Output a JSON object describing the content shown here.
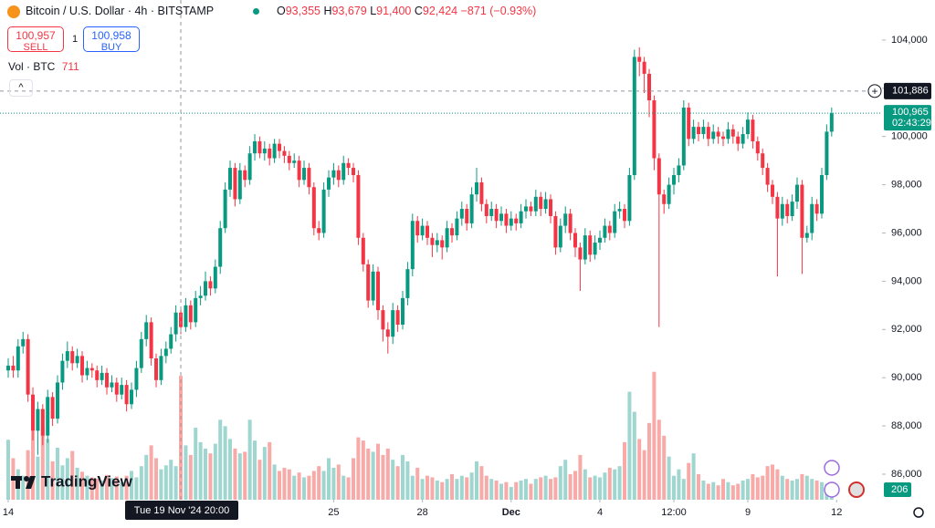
{
  "header": {
    "symbol": "Bitcoin / U.S. Dollar · 4h · BITSTAMP",
    "o_label": "O",
    "open": "93,355",
    "h_label": "H",
    "high": "93,679",
    "l_label": "L",
    "low": "91,400",
    "c_label": "C",
    "close": "92,424",
    "change": "−871 (−0.93%)"
  },
  "trade": {
    "sell_price": "100,957",
    "sell": "SELL",
    "spread": "1",
    "buy_price": "100,958",
    "buy": "BUY"
  },
  "volume_legend": {
    "label": "Vol · BTC",
    "value": "711"
  },
  "logo": "TradingView",
  "chart_data": {
    "type": "candlestick",
    "open": [
      90300,
      90500,
      90300,
      91300,
      91600,
      89300,
      87800,
      88700,
      87600,
      89200,
      88300,
      89800,
      90700,
      91100,
      90600,
      90900,
      90100,
      90400,
      90300,
      89900,
      90200,
      89600,
      89800,
      89300,
      89700,
      88900,
      89500,
      90400,
      91600,
      92300,
      90800,
      89900,
      90900,
      91200,
      91800,
      92700,
      92100,
      93000,
      92300,
      93300,
      93400,
      94000,
      93700,
      94600,
      96200,
      97800,
      98700,
      97400,
      98600,
      98200,
      99300,
      99800,
      99300,
      99500,
      99100,
      99700,
      99400,
      99200,
      98900,
      99000,
      98200,
      98700,
      97900,
      96200,
      96000,
      97800,
      98300,
      98600,
      98200,
      98900,
      98700,
      98400,
      95800,
      94700,
      93200,
      94400,
      92800,
      92000,
      91700,
      92800,
      92200,
      93300,
      94500,
      96500,
      95900,
      96300,
      95800,
      95500,
      95700,
      95400,
      96200,
      95900,
      96600,
      97000,
      96400,
      97600,
      98100,
      97200,
      96700,
      97000,
      96500,
      96800,
      96300,
      96600,
      96400,
      96900,
      97100,
      96900,
      97500,
      97000,
      97400,
      96700,
      95400,
      96300,
      96800,
      96000,
      95400,
      94900,
      95900,
      95100,
      95600,
      95800,
      96300,
      96000,
      96900,
      97000,
      96500,
      98400,
      103300,
      103100,
      102600,
      101500,
      99100,
      97600,
      97200,
      98000,
      98400,
      98800,
      101200,
      99900,
      100400,
      100100,
      100400,
      99900,
      100200,
      100000,
      99900,
      100300,
      100000,
      99700,
      100100,
      100700,
      99800,
      99300,
      98700,
      98000,
      97500,
      96600,
      97200,
      96700,
      97300,
      98000,
      95800,
      96000,
      97200,
      96800,
      98400,
      100200
    ],
    "high": [
      90800,
      90900,
      91600,
      91900,
      91800,
      89600,
      89000,
      88900,
      89500,
      89400,
      90100,
      91000,
      91500,
      91300,
      91200,
      91100,
      90700,
      90600,
      90500,
      90500,
      90400,
      90100,
      90000,
      90000,
      89900,
      89800,
      90700,
      91900,
      92600,
      92500,
      91000,
      91200,
      91500,
      92100,
      93000,
      92900,
      93300,
      93200,
      93600,
      93800,
      94400,
      94200,
      94900,
      96500,
      98100,
      99000,
      98900,
      98900,
      98800,
      99600,
      100100,
      100000,
      99800,
      99700,
      99900,
      99900,
      99600,
      99400,
      99300,
      99200,
      99000,
      98900,
      98100,
      96500,
      98100,
      98600,
      98900,
      98800,
      99200,
      99100,
      98900,
      98600,
      96000,
      94900,
      94700,
      94600,
      93000,
      92300,
      93100,
      93000,
      93600,
      94800,
      96800,
      96700,
      96600,
      96500,
      96000,
      96000,
      95900,
      96500,
      96400,
      96900,
      97300,
      97200,
      97900,
      98700,
      98300,
      97400,
      97300,
      97200,
      97100,
      97000,
      96900,
      96800,
      97200,
      97400,
      97300,
      97800,
      97700,
      97700,
      97600,
      96900,
      96600,
      97100,
      97000,
      96200,
      95600,
      96200,
      96100,
      95900,
      96100,
      96600,
      96500,
      97200,
      97300,
      97200,
      98700,
      103600,
      103700,
      103300,
      102800,
      101700,
      99300,
      97800,
      98300,
      98700,
      99100,
      101500,
      101400,
      100700,
      100600,
      100700,
      100600,
      100500,
      100400,
      100200,
      100600,
      100500,
      100200,
      100400,
      101000,
      100900,
      100000,
      99500,
      98900,
      98200,
      97700,
      97500,
      97400,
      97600,
      98300,
      98200,
      96300,
      97500,
      97400,
      98700,
      100500,
      101200
    ],
    "low": [
      90000,
      90000,
      90000,
      91000,
      89000,
      87400,
      86800,
      87200,
      87300,
      88000,
      88100,
      89500,
      90400,
      90300,
      90400,
      89800,
      89900,
      90000,
      89600,
      89700,
      89300,
      89400,
      89000,
      89100,
      88600,
      88700,
      89200,
      90200,
      91300,
      90500,
      89600,
      89700,
      90600,
      91000,
      91500,
      91800,
      91900,
      92000,
      92100,
      93000,
      93200,
      93400,
      93500,
      94300,
      96000,
      97500,
      97100,
      97200,
      97900,
      98000,
      99000,
      99100,
      99000,
      98800,
      98900,
      99100,
      98900,
      98600,
      98700,
      97900,
      98000,
      97600,
      95900,
      95700,
      95800,
      97500,
      98000,
      97900,
      98000,
      98400,
      98100,
      95500,
      94400,
      92900,
      93000,
      92400,
      91500,
      91000,
      91400,
      91900,
      92000,
      93000,
      94200,
      95600,
      95700,
      95500,
      95000,
      95200,
      94900,
      95200,
      95600,
      95700,
      96300,
      96100,
      96200,
      97300,
      96900,
      96400,
      96500,
      96200,
      96300,
      96000,
      96100,
      96100,
      96200,
      96600,
      96700,
      96700,
      96700,
      96800,
      96400,
      95100,
      95200,
      96000,
      95700,
      95000,
      93600,
      94700,
      94800,
      94900,
      95300,
      95600,
      95700,
      95800,
      96600,
      96200,
      96300,
      98200,
      102500,
      101800,
      100800,
      98600,
      92100,
      96800,
      97000,
      97600,
      98100,
      98600,
      99600,
      99700,
      99800,
      99900,
      99600,
      99700,
      99700,
      99600,
      99700,
      99700,
      99400,
      99500,
      99900,
      99500,
      99000,
      98400,
      97700,
      97200,
      94200,
      96300,
      96400,
      96500,
      97000,
      94300,
      95600,
      95700,
      96500,
      96600,
      98200,
      100000
    ],
    "close": [
      90500,
      90300,
      91300,
      91600,
      89300,
      87800,
      88700,
      87600,
      89200,
      88300,
      89800,
      90700,
      91100,
      90600,
      90900,
      90100,
      90400,
      90300,
      89900,
      90200,
      89600,
      89800,
      89300,
      89700,
      88900,
      89500,
      90400,
      91600,
      92300,
      90800,
      89900,
      90900,
      91200,
      91800,
      92700,
      92100,
      93000,
      92300,
      93300,
      93400,
      94000,
      93700,
      94600,
      96200,
      97800,
      98700,
      97400,
      98600,
      98200,
      99300,
      99800,
      99300,
      99500,
      99100,
      99700,
      99400,
      99200,
      98900,
      99000,
      98200,
      98700,
      97900,
      96200,
      96000,
      97800,
      98300,
      98600,
      98200,
      98900,
      98700,
      98400,
      95800,
      94700,
      93200,
      94400,
      92800,
      92000,
      91700,
      92800,
      92200,
      93300,
      94500,
      96500,
      95900,
      96300,
      95800,
      95500,
      95700,
      95400,
      96200,
      95900,
      96600,
      97000,
      96400,
      97600,
      98100,
      97200,
      96700,
      97000,
      96500,
      96800,
      96300,
      96600,
      96400,
      96900,
      97100,
      96900,
      97500,
      97000,
      97400,
      96700,
      95400,
      96300,
      96800,
      96000,
      95400,
      94900,
      95900,
      95100,
      95600,
      95800,
      96300,
      96000,
      96900,
      97000,
      96500,
      98400,
      103300,
      103100,
      102600,
      101500,
      99100,
      97600,
      97200,
      98000,
      98400,
      98800,
      101200,
      99900,
      100400,
      100100,
      100400,
      99900,
      100200,
      100000,
      99900,
      100300,
      100000,
      99700,
      100100,
      100700,
      99800,
      99300,
      98700,
      98000,
      97500,
      96600,
      97200,
      96700,
      97300,
      98000,
      95800,
      96000,
      97200,
      96800,
      98400,
      100200,
      100965
    ],
    "volume": [
      750,
      520,
      380,
      300,
      620,
      860,
      540,
      900,
      760,
      480,
      650,
      430,
      520,
      610,
      400,
      350,
      300,
      280,
      260,
      240,
      310,
      270,
      290,
      220,
      300,
      360,
      280,
      420,
      560,
      680,
      520,
      380,
      430,
      500,
      420,
      1550,
      680,
      560,
      900,
      720,
      640,
      580,
      700,
      1000,
      920,
      760,
      640,
      580,
      600,
      1000,
      740,
      500,
      660,
      720,
      440,
      360,
      400,
      380,
      300,
      340,
      280,
      300,
      360,
      420,
      360,
      520,
      400,
      440,
      300,
      280,
      520,
      780,
      740,
      640,
      600,
      700,
      560,
      640,
      500,
      420,
      560,
      480,
      300,
      400,
      260,
      300,
      280,
      240,
      220,
      260,
      320,
      260,
      300,
      280,
      340,
      480,
      420,
      300,
      260,
      240,
      200,
      220,
      160,
      220,
      240,
      260,
      200,
      260,
      280,
      300,
      260,
      280,
      420,
      500,
      320,
      360,
      560,
      380,
      280,
      300,
      280,
      340,
      400,
      380,
      420,
      720,
      1350,
      1100,
      760,
      620,
      960,
      1600,
      1000,
      800,
      540,
      300,
      380,
      260,
      460,
      580,
      320,
      240,
      200,
      220,
      180,
      260,
      220,
      180,
      200,
      240,
      260,
      320,
      280,
      300,
      420,
      440,
      380,
      300,
      260,
      240,
      260,
      320,
      300,
      260,
      240,
      220,
      200,
      206
    ],
    "up_color": "#089981",
    "down_color": "#f23645",
    "volume_up_color": "#9fd6d0",
    "volume_down_color": "#f7aaa8",
    "xlim": [
      -1.67,
      177.22
    ],
    "xticks": [
      {
        "value": 0,
        "label": "14"
      },
      {
        "value": 66,
        "label": "25"
      },
      {
        "value": 84,
        "label": "28"
      },
      {
        "value": 102,
        "label": "Dec"
      },
      {
        "value": 120,
        "label": "4"
      },
      {
        "value": 135,
        "label": "12:00"
      },
      {
        "value": 150,
        "label": "9"
      },
      {
        "value": 168,
        "label": "12"
      }
    ],
    "ylim": [
      84940,
      105660
    ],
    "yticks": [
      {
        "value": 86000,
        "label": "86,000"
      },
      {
        "value": 88000,
        "label": "88,000"
      },
      {
        "value": 90000,
        "label": "90,000"
      },
      {
        "value": 92000,
        "label": "92,000"
      },
      {
        "value": 94000,
        "label": "94,000"
      },
      {
        "value": 96000,
        "label": "96,000"
      },
      {
        "value": 98000,
        "label": "98,000"
      },
      {
        "value": 100000,
        "label": "100,000"
      },
      {
        "value": 102000,
        "label": "102,000"
      },
      {
        "value": 104000,
        "label": "104,000"
      }
    ],
    "volume_lim": [
      0,
      6250
    ],
    "last_price_label": "100,965",
    "countdown": "02:43:29",
    "crosshair": {
      "x": 35,
      "x_label": "Tue 19 Nov '24 20:00",
      "price": 101886,
      "price_label": "101,886"
    }
  }
}
